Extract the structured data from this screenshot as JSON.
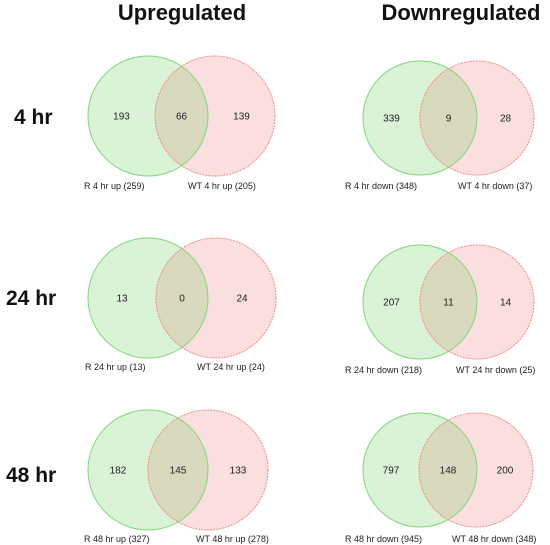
{
  "columns": [
    "Upregulated",
    "Downregulated"
  ],
  "rows": [
    "4 hr",
    "24 hr",
    "48 hr"
  ],
  "colors": {
    "green_fill": "#daf3d7",
    "green_stroke": "#7fd67a",
    "red_fill": "#fbdfdf",
    "red_stroke": "#ee8a8a",
    "overlap_fill": "#d9d9bf"
  },
  "venns": [
    {
      "left_only": "193",
      "overlap": "66",
      "right_only": "139",
      "left_label": "R 4 hr up (259)",
      "right_label": "WT 4 hr up (205)"
    },
    {
      "left_only": "339",
      "overlap": "9",
      "right_only": "28",
      "left_label": "R 4 hr down (348)",
      "right_label": "WT 4 hr down (37)"
    },
    {
      "left_only": "13",
      "overlap": "0",
      "right_only": "24",
      "left_label": "R 24 hr up (13)",
      "right_label": "WT 24 hr up (24)"
    },
    {
      "left_only": "207",
      "overlap": "11",
      "right_only": "14",
      "left_label": "R 24 hr down (218)",
      "right_label": "WT 24 hr down (25)"
    },
    {
      "left_only": "182",
      "overlap": "145",
      "right_only": "133",
      "left_label": "R 48 hr up (327)",
      "right_label": "WT 48 hr up (278)"
    },
    {
      "left_only": "797",
      "overlap": "148",
      "right_only": "200",
      "left_label": "R 48 hr down (945)",
      "right_label": "WT 48 hr down (348)"
    }
  ]
}
